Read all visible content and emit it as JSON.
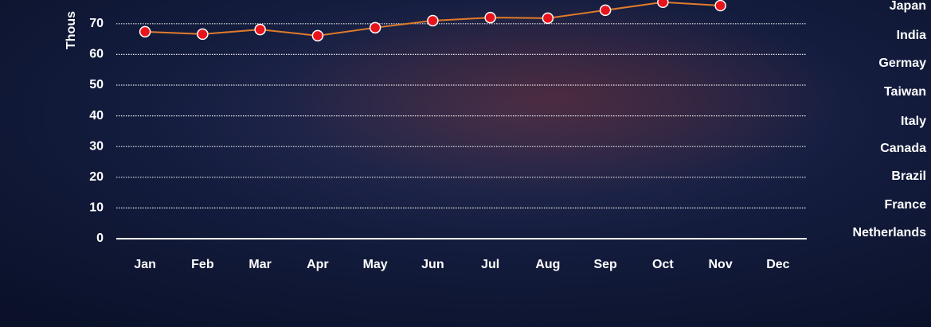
{
  "chart_data": {
    "type": "line",
    "ylabel": "Thous",
    "categories": [
      "Jan",
      "Feb",
      "Mar",
      "Apr",
      "May",
      "Jun",
      "Jul",
      "Aug",
      "Sep",
      "Oct",
      "Nov",
      "Dec"
    ],
    "series": [
      {
        "name": null,
        "color": "#e07b2a",
        "marker_color": "#e8141c",
        "values": [
          67.4,
          66.6,
          68.1,
          66.1,
          68.7,
          71.0,
          72.0,
          71.8,
          74.4,
          77.0,
          75.9,
          null
        ]
      }
    ],
    "ylim": [
      0,
      80
    ],
    "yticks": [
      0,
      10,
      20,
      30,
      40,
      50,
      60,
      70
    ],
    "grid": true,
    "side_labels": [
      "Japan",
      "India",
      "Germay",
      "Taiwan",
      "Italy",
      "Canada",
      "Brazil",
      "France",
      "Netherlands"
    ]
  }
}
